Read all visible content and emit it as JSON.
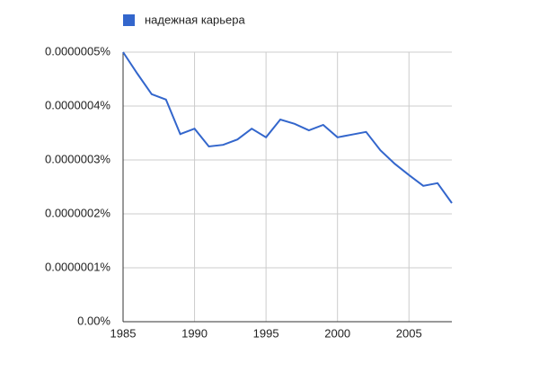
{
  "chart_data": {
    "type": "line",
    "x": [
      1985,
      1986,
      1987,
      1988,
      1989,
      1990,
      1991,
      1992,
      1993,
      1994,
      1995,
      1996,
      1997,
      1998,
      1999,
      2000,
      2001,
      2002,
      2003,
      2004,
      2005,
      2006,
      2007,
      2008
    ],
    "series": [
      {
        "name": "надежная карьера",
        "color": "#3366cc",
        "values": [
          5e-07,
          4.6e-07,
          4.22e-07,
          4.12e-07,
          3.48e-07,
          3.58e-07,
          3.25e-07,
          3.28e-07,
          3.38e-07,
          3.58e-07,
          3.42e-07,
          3.75e-07,
          3.67e-07,
          3.55e-07,
          3.65e-07,
          3.42e-07,
          3.47e-07,
          3.52e-07,
          3.18e-07,
          2.93e-07,
          2.72e-07,
          2.52e-07,
          2.57e-07,
          2.2e-07
        ]
      }
    ],
    "xlim": [
      1985,
      2008
    ],
    "xticks": [
      1985,
      1990,
      1995,
      2000,
      2005
    ],
    "ylim": [
      0,
      5e-07
    ],
    "yticks": [
      {
        "value": 0,
        "label": "0.00%"
      },
      {
        "value": 1e-07,
        "label": "0.0000001%"
      },
      {
        "value": 2e-07,
        "label": "0.0000002%"
      },
      {
        "value": 3e-07,
        "label": "0.0000003%"
      },
      {
        "value": 4e-07,
        "label": "0.0000004%"
      },
      {
        "value": 5e-07,
        "label": "0.0000005%"
      }
    ],
    "grid": true,
    "legend": "top"
  }
}
